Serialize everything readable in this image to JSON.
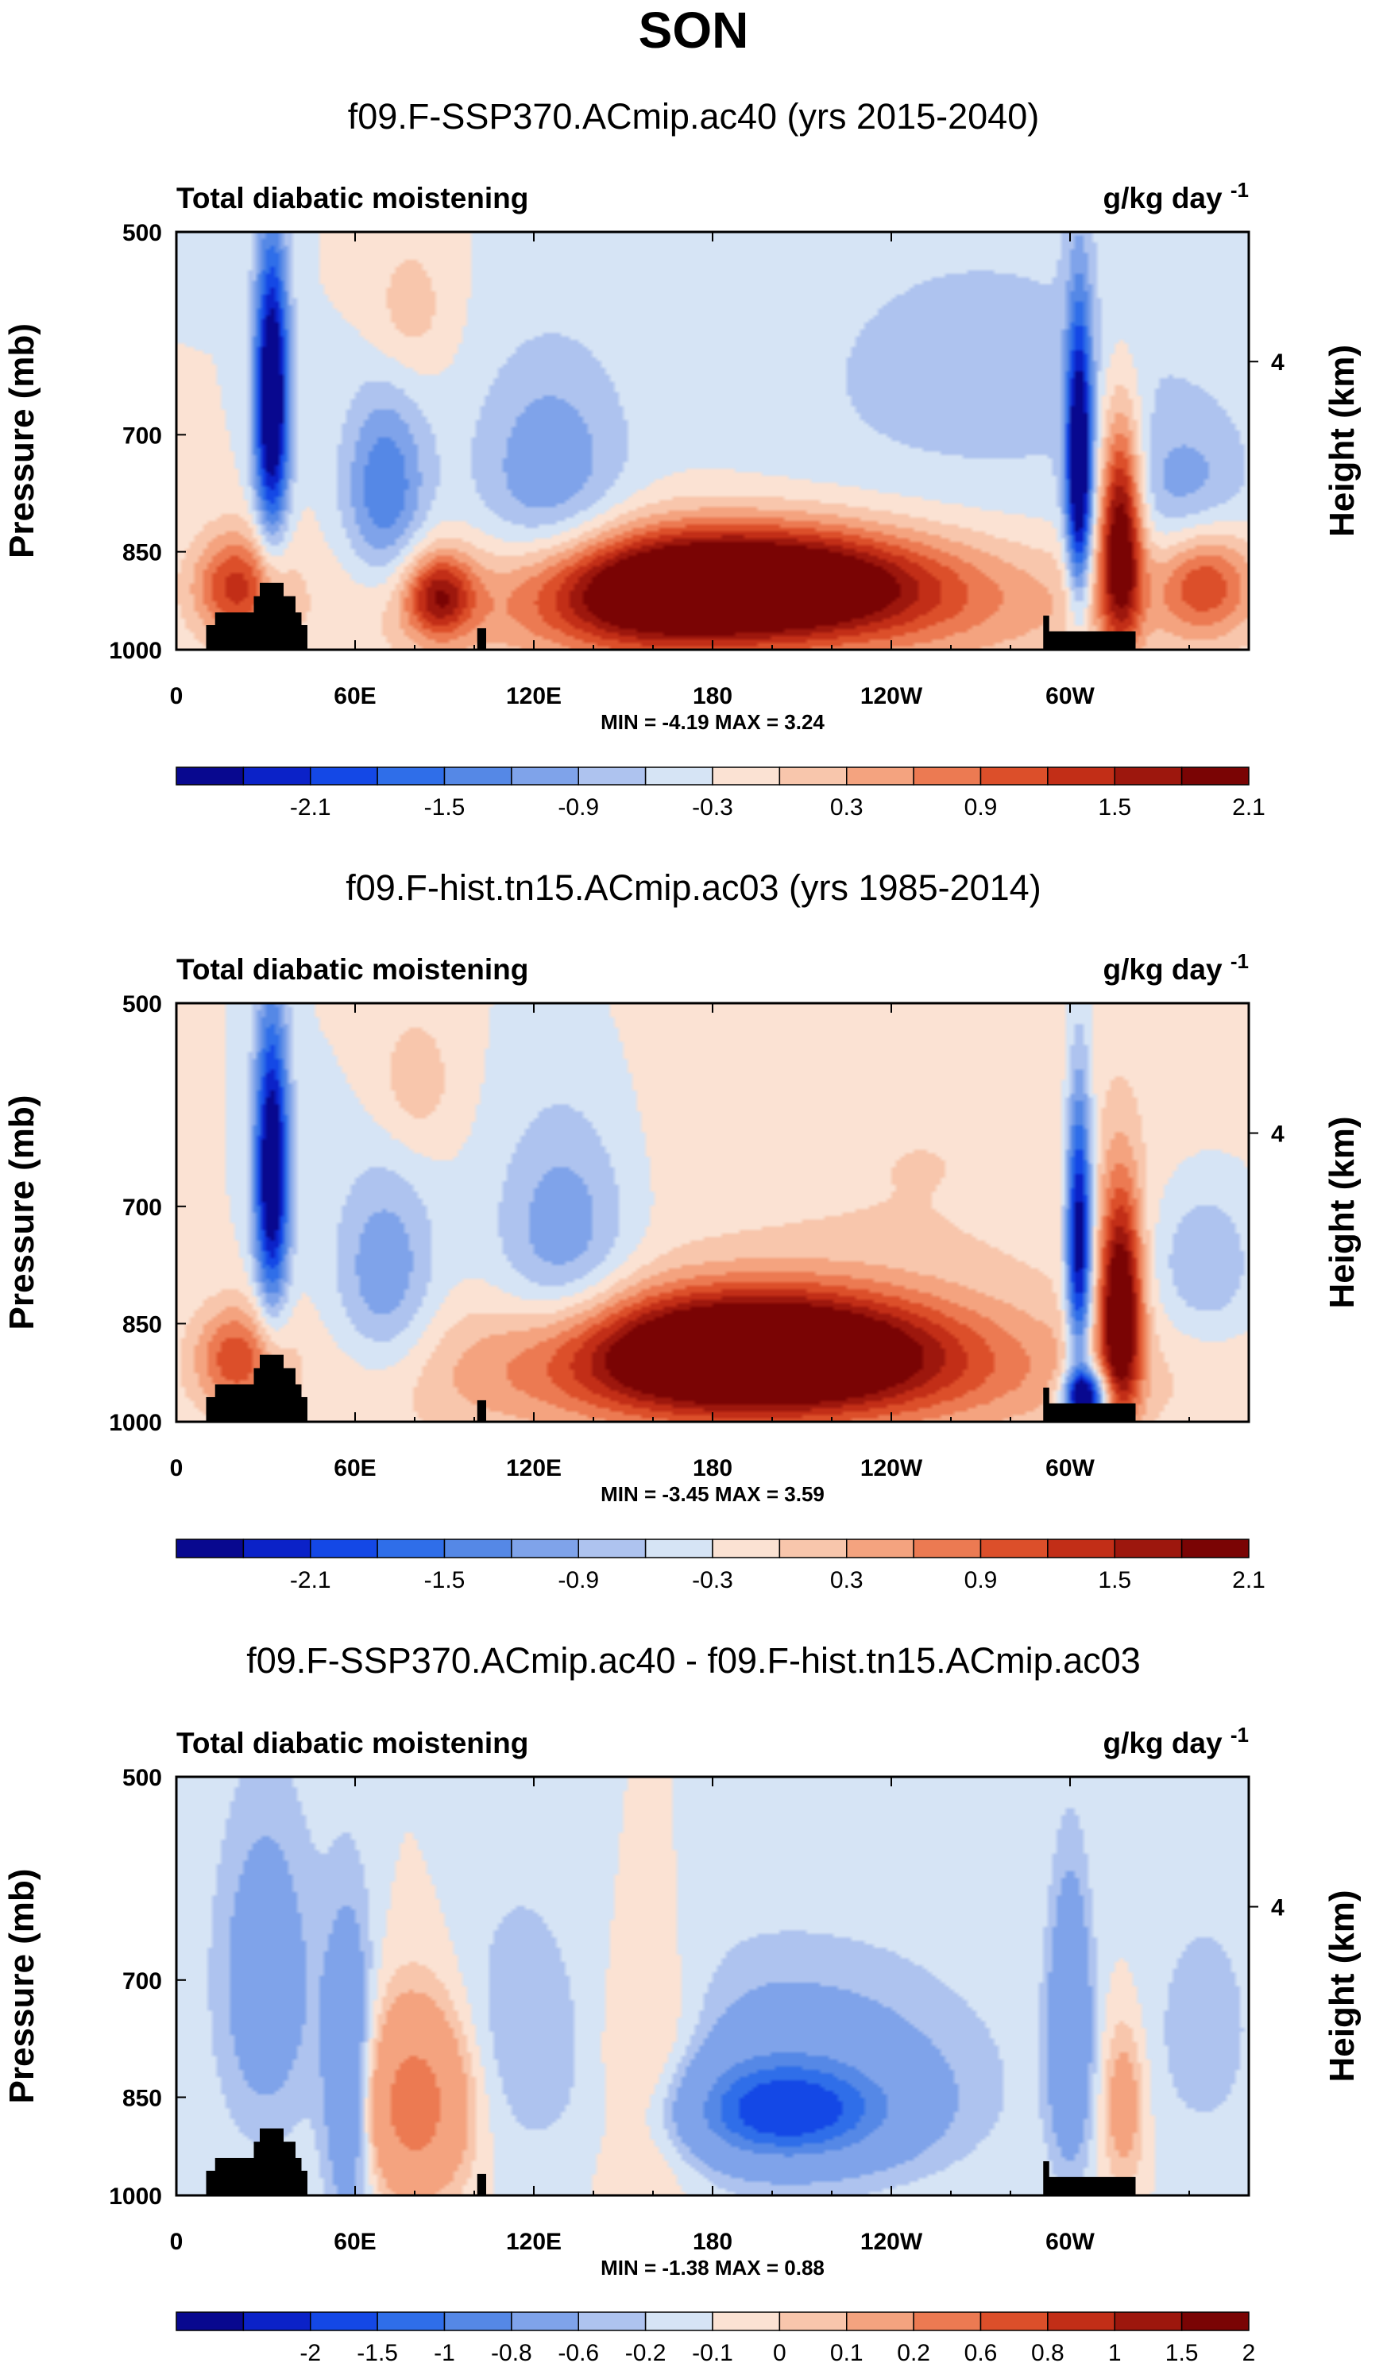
{
  "figure_title": "SON",
  "colors": {
    "field_palette": [
      "#08088f",
      "#0b22c8",
      "#1448e6",
      "#2f6ee9",
      "#5588e6",
      "#7fa3ea",
      "#aec3ef",
      "#d6e4f5",
      "#fbe2d3",
      "#f8c6ac",
      "#f4a37f",
      "#ec7a52",
      "#dc4f2a",
      "#c22e17",
      "#9d170d",
      "#7a0404"
    ],
    "diff_palette": [
      "#08088f",
      "#0b22c8",
      "#1448e6",
      "#2f6ee9",
      "#5588e6",
      "#7fa3ea",
      "#aec3ef",
      "#d6e4f5",
      "#fbe2d3",
      "#f8c6ac",
      "#f4a37f",
      "#ec7a52",
      "#dc4f2a",
      "#c22e17",
      "#9d170d",
      "#7a0404"
    ],
    "mask": "#000000"
  },
  "chart_data": [
    {
      "type": "heatmap",
      "title": "f09.F-SSP370.ACmip.ac40 (yrs 2015-2040)",
      "left_label": "Total diabatic moistening",
      "units": "g/kg day",
      "units_exp": "-1",
      "ylabel": "Pressure (mb)",
      "ylabel_right": "Height (km)",
      "y_ticks": [
        "500",
        "700",
        "850",
        "1000"
      ],
      "right_ticks": [
        "4"
      ],
      "x_ticks": [
        "0",
        "60E",
        "120E",
        "180",
        "120W",
        "60W"
      ],
      "xlim": [
        0,
        360
      ],
      "ylim": [
        1000,
        500
      ],
      "min": -4.19,
      "max": 3.24,
      "stats": "MIN = -4.19   MAX =   3.24",
      "colorbar_labels": [
        "-2.1",
        "-1.5",
        "-0.9",
        "-0.3",
        "0.3",
        "0.9",
        "1.5",
        "2.1"
      ],
      "levels": [
        -2.4,
        -2.1,
        -1.8,
        -1.5,
        -1.2,
        -0.9,
        -0.6,
        -0.3,
        0,
        0.3,
        0.6,
        0.9,
        1.2,
        1.5,
        1.8,
        2.1,
        2.4
      ],
      "features": [
        {
          "lon": 195,
          "p": 895,
          "dlon": 40,
          "dp": 55,
          "amp": 2.8
        },
        {
          "lon": 195,
          "p": 935,
          "dlon": 90,
          "dp": 80,
          "amp": 1.0
        },
        {
          "lon": 32,
          "p": 660,
          "dlon": 4,
          "dp": 110,
          "amp": -3.0
        },
        {
          "lon": 303,
          "p": 740,
          "dlon": 3,
          "dp": 120,
          "amp": -2.8
        },
        {
          "lon": 317,
          "p": 830,
          "dlon": 5,
          "dp": 110,
          "amp": 2.6
        },
        {
          "lon": 70,
          "p": 770,
          "dlon": 10,
          "dp": 90,
          "amp": -1.2
        },
        {
          "lon": 125,
          "p": 760,
          "dlon": 18,
          "dp": 110,
          "amp": -0.9
        },
        {
          "lon": 88,
          "p": 915,
          "dlon": 8,
          "dp": 45,
          "amp": 1.7
        },
        {
          "lon": 20,
          "p": 900,
          "dlon": 10,
          "dp": 55,
          "amp": 1.5
        },
        {
          "lon": 155,
          "p": 920,
          "dlon": 25,
          "dp": 60,
          "amp": 0.9
        },
        {
          "lon": 345,
          "p": 890,
          "dlon": 12,
          "dp": 60,
          "amp": 1.4
        },
        {
          "lon": 340,
          "p": 780,
          "dlon": 14,
          "dp": 70,
          "amp": -0.7
        },
        {
          "lon": 78,
          "p": 570,
          "dlon": 10,
          "dp": 50,
          "amp": 0.5
        },
        {
          "lon": 270,
          "p": 640,
          "dlon": 60,
          "dp": 140,
          "amp": -0.4
        }
      ]
    },
    {
      "type": "heatmap",
      "title": "f09.F-hist.tn15.ACmip.ac03 (yrs 1985-2014)",
      "left_label": "Total diabatic moistening",
      "units": "g/kg day",
      "units_exp": "-1",
      "ylabel": "Pressure (mb)",
      "ylabel_right": "Height (km)",
      "y_ticks": [
        "500",
        "700",
        "850",
        "1000"
      ],
      "right_ticks": [
        "4"
      ],
      "x_ticks": [
        "0",
        "60E",
        "120E",
        "180",
        "120W",
        "60W"
      ],
      "xlim": [
        0,
        360
      ],
      "ylim": [
        1000,
        500
      ],
      "min": -3.45,
      "max": 3.59,
      "stats": "MIN = -3.45   MAX =   3.59",
      "colorbar_labels": [
        "-2.1",
        "-1.5",
        "-0.9",
        "-0.3",
        "0.3",
        "0.9",
        "1.5",
        "2.1"
      ],
      "levels": [
        -2.4,
        -2.1,
        -1.8,
        -1.5,
        -1.2,
        -0.9,
        -0.6,
        -0.3,
        0,
        0.3,
        0.6,
        0.9,
        1.2,
        1.5,
        1.8,
        2.1,
        2.4
      ],
      "features": [
        {
          "lon": 195,
          "p": 890,
          "dlon": 42,
          "dp": 60,
          "amp": 3.2
        },
        {
          "lon": 195,
          "p": 935,
          "dlon": 90,
          "dp": 80,
          "amp": 1.0
        },
        {
          "lon": 32,
          "p": 660,
          "dlon": 4,
          "dp": 110,
          "amp": -2.8
        },
        {
          "lon": 303,
          "p": 740,
          "dlon": 3,
          "dp": 120,
          "amp": -2.6
        },
        {
          "lon": 317,
          "p": 830,
          "dlon": 5,
          "dp": 110,
          "amp": 2.7
        },
        {
          "lon": 305,
          "p": 960,
          "dlon": 5,
          "dp": 30,
          "amp": -3.0
        },
        {
          "lon": 70,
          "p": 790,
          "dlon": 12,
          "dp": 100,
          "amp": -0.9
        },
        {
          "lon": 130,
          "p": 740,
          "dlon": 16,
          "dp": 110,
          "amp": -0.9
        },
        {
          "lon": 20,
          "p": 900,
          "dlon": 10,
          "dp": 55,
          "amp": 1.3
        },
        {
          "lon": 345,
          "p": 770,
          "dlon": 12,
          "dp": 70,
          "amp": -0.7
        },
        {
          "lon": 80,
          "p": 570,
          "dlon": 10,
          "dp": 50,
          "amp": 0.5
        },
        {
          "lon": 250,
          "p": 650,
          "dlon": 70,
          "dp": 140,
          "amp": 0.3
        }
      ]
    },
    {
      "type": "heatmap",
      "title": "f09.F-SSP370.ACmip.ac40 - f09.F-hist.tn15.ACmip.ac03",
      "left_label": "Total diabatic moistening",
      "units": "g/kg day",
      "units_exp": "-1",
      "ylabel": "Pressure (mb)",
      "ylabel_right": "Height (km)",
      "y_ticks": [
        "500",
        "700",
        "850",
        "1000"
      ],
      "right_ticks": [
        "4"
      ],
      "x_ticks": [
        "0",
        "60E",
        "120E",
        "180",
        "120W",
        "60W"
      ],
      "xlim": [
        0,
        360
      ],
      "ylim": [
        1000,
        500
      ],
      "min": -1.38,
      "max": 0.88,
      "stats": "MIN = -1.38   MAX =   0.88",
      "colorbar_labels": [
        "-2",
        "-1.5",
        "-1",
        "-0.8",
        "-0.6",
        "-0.2",
        "-0.1",
        "0",
        "0.1",
        "0.2",
        "0.6",
        "0.8",
        "1",
        "1.5",
        "2"
      ],
      "levels": [
        -2.5,
        -2,
        -1.5,
        -1,
        -0.8,
        -0.6,
        -0.2,
        -0.1,
        0,
        0.1,
        0.2,
        0.6,
        0.8,
        1,
        1.5,
        2,
        2.5
      ],
      "features": [
        {
          "lon": 205,
          "p": 870,
          "dlon": 24,
          "dp": 50,
          "amp": -0.95
        },
        {
          "lon": 205,
          "p": 820,
          "dlon": 45,
          "dp": 110,
          "amp": -0.35
        },
        {
          "lon": 80,
          "p": 860,
          "dlon": 12,
          "dp": 90,
          "amp": 0.8
        },
        {
          "lon": 160,
          "p": 830,
          "dlon": 14,
          "dp": 110,
          "amp": 0.35
        },
        {
          "lon": 58,
          "p": 830,
          "dlon": 6,
          "dp": 150,
          "amp": -0.5
        },
        {
          "lon": 30,
          "p": 700,
          "dlon": 12,
          "dp": 140,
          "amp": -0.35
        },
        {
          "lon": 300,
          "p": 760,
          "dlon": 5,
          "dp": 130,
          "amp": -0.5
        },
        {
          "lon": 318,
          "p": 860,
          "dlon": 5,
          "dp": 80,
          "amp": 0.35
        },
        {
          "lon": 115,
          "p": 740,
          "dlon": 14,
          "dp": 120,
          "amp": -0.15
        },
        {
          "lon": 345,
          "p": 760,
          "dlon": 14,
          "dp": 120,
          "amp": -0.15
        }
      ]
    }
  ]
}
